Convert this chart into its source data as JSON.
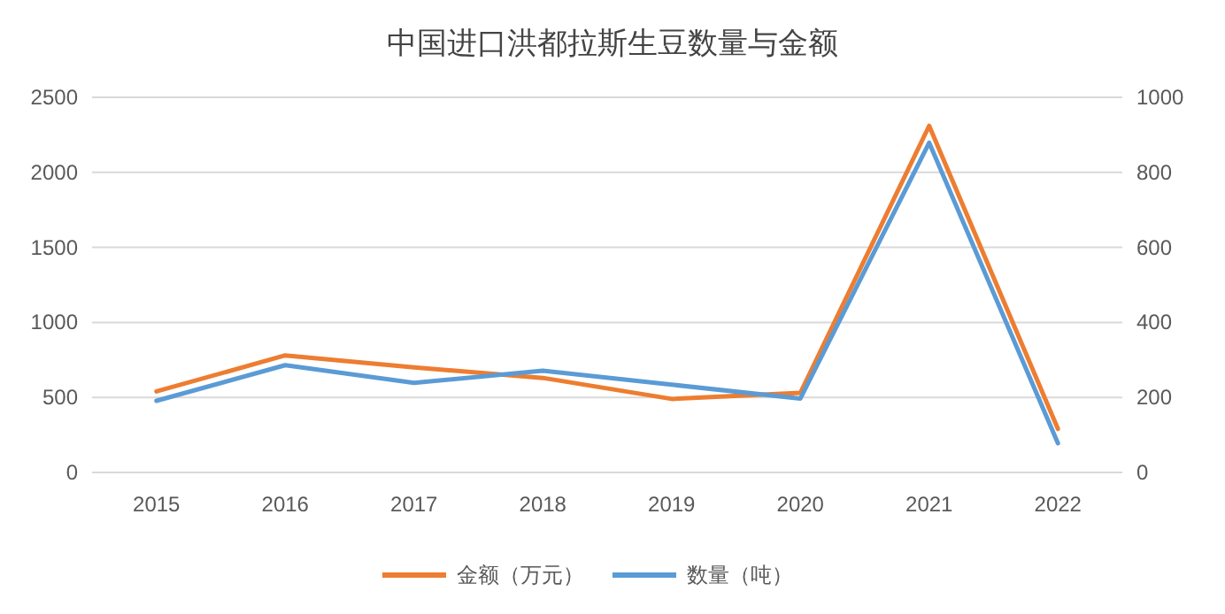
{
  "chart_data": {
    "type": "line",
    "title": "中国进口洪都拉斯生豆数量与金额",
    "categories": [
      "2015",
      "2016",
      "2017",
      "2018",
      "2019",
      "2020",
      "2021",
      "2022"
    ],
    "series": [
      {
        "name": "金额（万元）",
        "color": "#ed7d31",
        "values": [
          540,
          780,
          700,
          630,
          490,
          530,
          2310,
          290
        ]
      },
      {
        "name": "数量（吨）",
        "color": "#5b9bd5",
        "axis": "y2",
        "values": [
          191,
          286,
          239,
          271,
          234,
          197,
          879,
          78
        ]
      }
    ],
    "ylim": [
      0,
      2500
    ],
    "yticks": [
      0,
      500,
      1000,
      1500,
      2000,
      2500
    ],
    "y2lim": [
      0,
      1000
    ],
    "y2ticks": [
      0,
      200,
      400,
      600,
      800,
      1000
    ],
    "grid": "y",
    "legend": "bottom",
    "marker": "none",
    "line_style": "solid"
  }
}
